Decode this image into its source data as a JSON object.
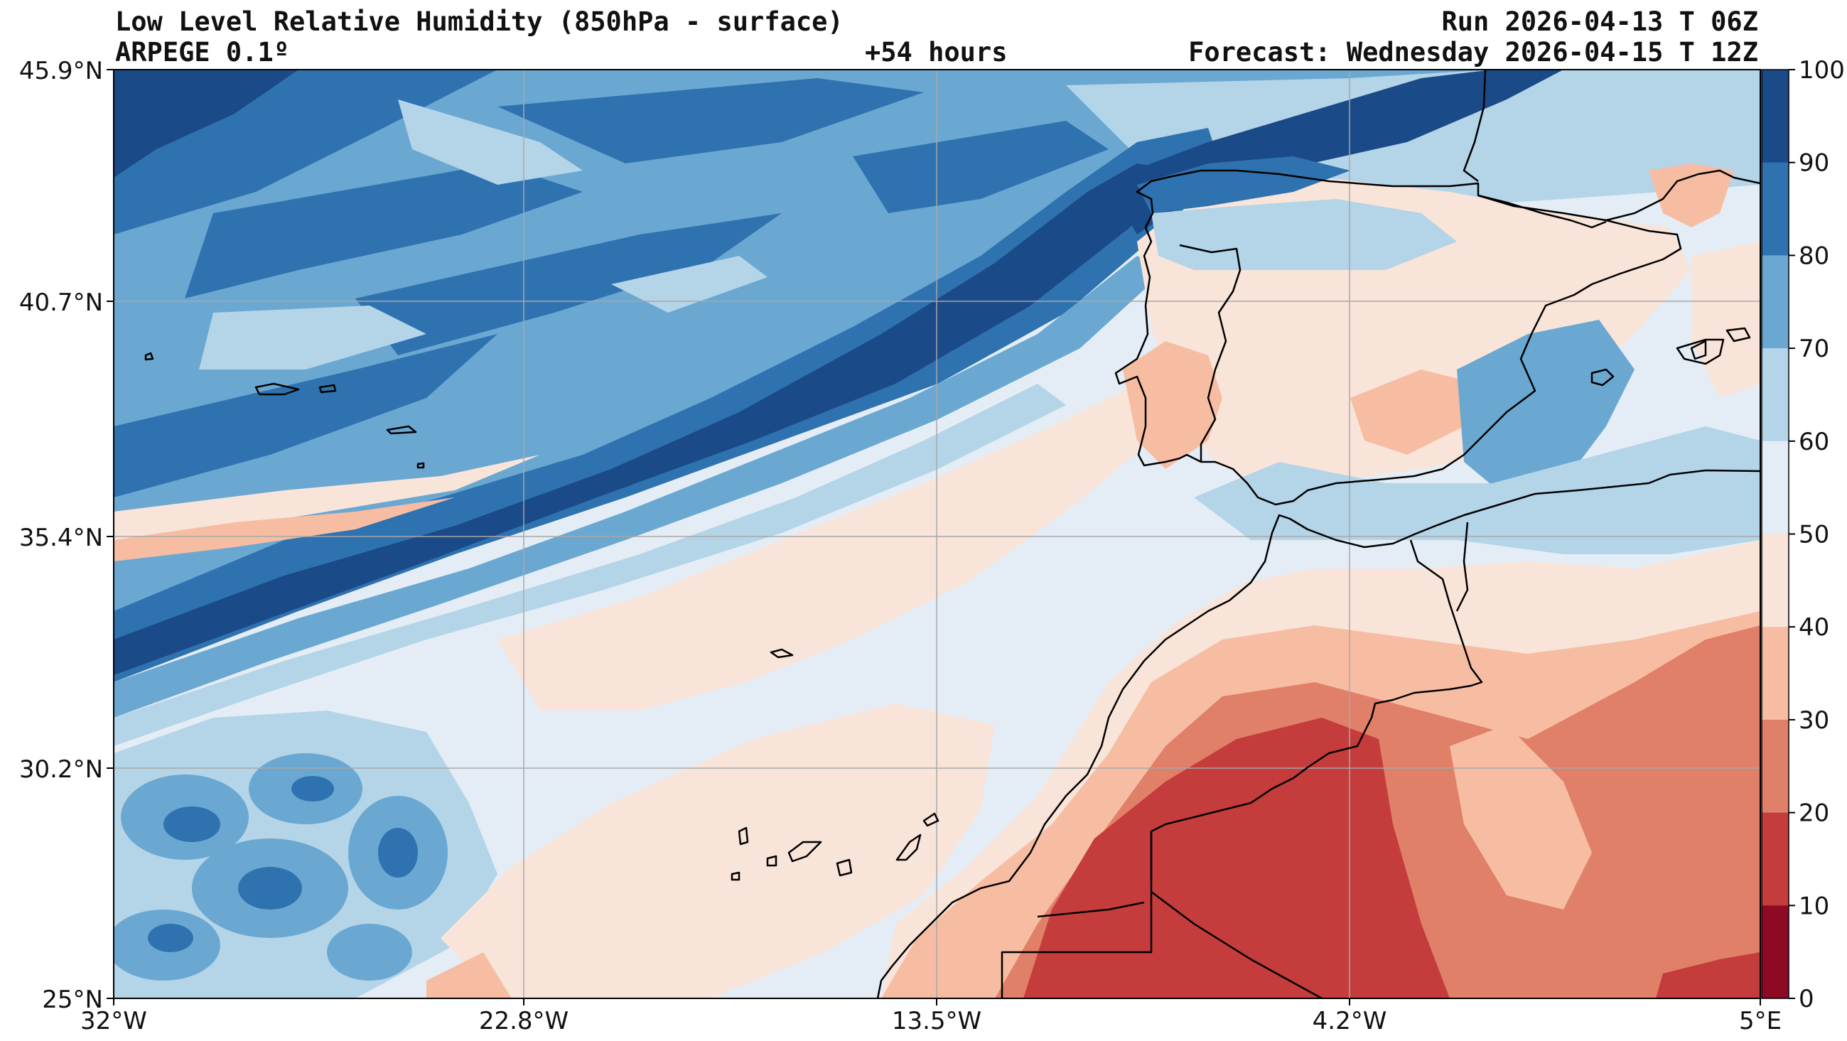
{
  "header": {
    "title": "Low Level Relative Humidity (850hPa - surface)",
    "model": "ARPEGE 0.1º",
    "lead": "+54 hours",
    "run": "Run 2026-04-13 T 06Z",
    "forecast": "Forecast: Wednesday 2026-04-15 T 12Z"
  },
  "axes": {
    "lat_labels": [
      "45.9°N",
      "40.7°N",
      "35.4°N",
      "30.2°N",
      "25°N"
    ],
    "lon_labels": [
      "32°W",
      "22.8°W",
      "13.5°W",
      "4.2°W",
      "5°E"
    ]
  },
  "colorbar": {
    "ticks": [
      "100",
      "90",
      "80",
      "70",
      "60",
      "50",
      "40",
      "30",
      "20",
      "10",
      "0"
    ],
    "colors": [
      "#1a4a87",
      "#2f72b0",
      "#6aa8d2",
      "#b4d4e8",
      "#e4edf5",
      "#f9e4da",
      "#f7bda3",
      "#e08068",
      "#c43c3c",
      "#8e0a24"
    ]
  },
  "palette": {
    "level_90_100": "#1a4a87",
    "level_80_90": "#2f72b0",
    "level_70_80": "#6aa8d2",
    "level_60_70": "#b4d4e8",
    "level_50_60": "#e4edf5",
    "level_40_50": "#f9e4da",
    "level_30_40": "#f7bda3",
    "level_20_30": "#e08068",
    "level_10_20": "#c43c3c",
    "coast": "#000000",
    "grid": "#a8a8a8"
  }
}
